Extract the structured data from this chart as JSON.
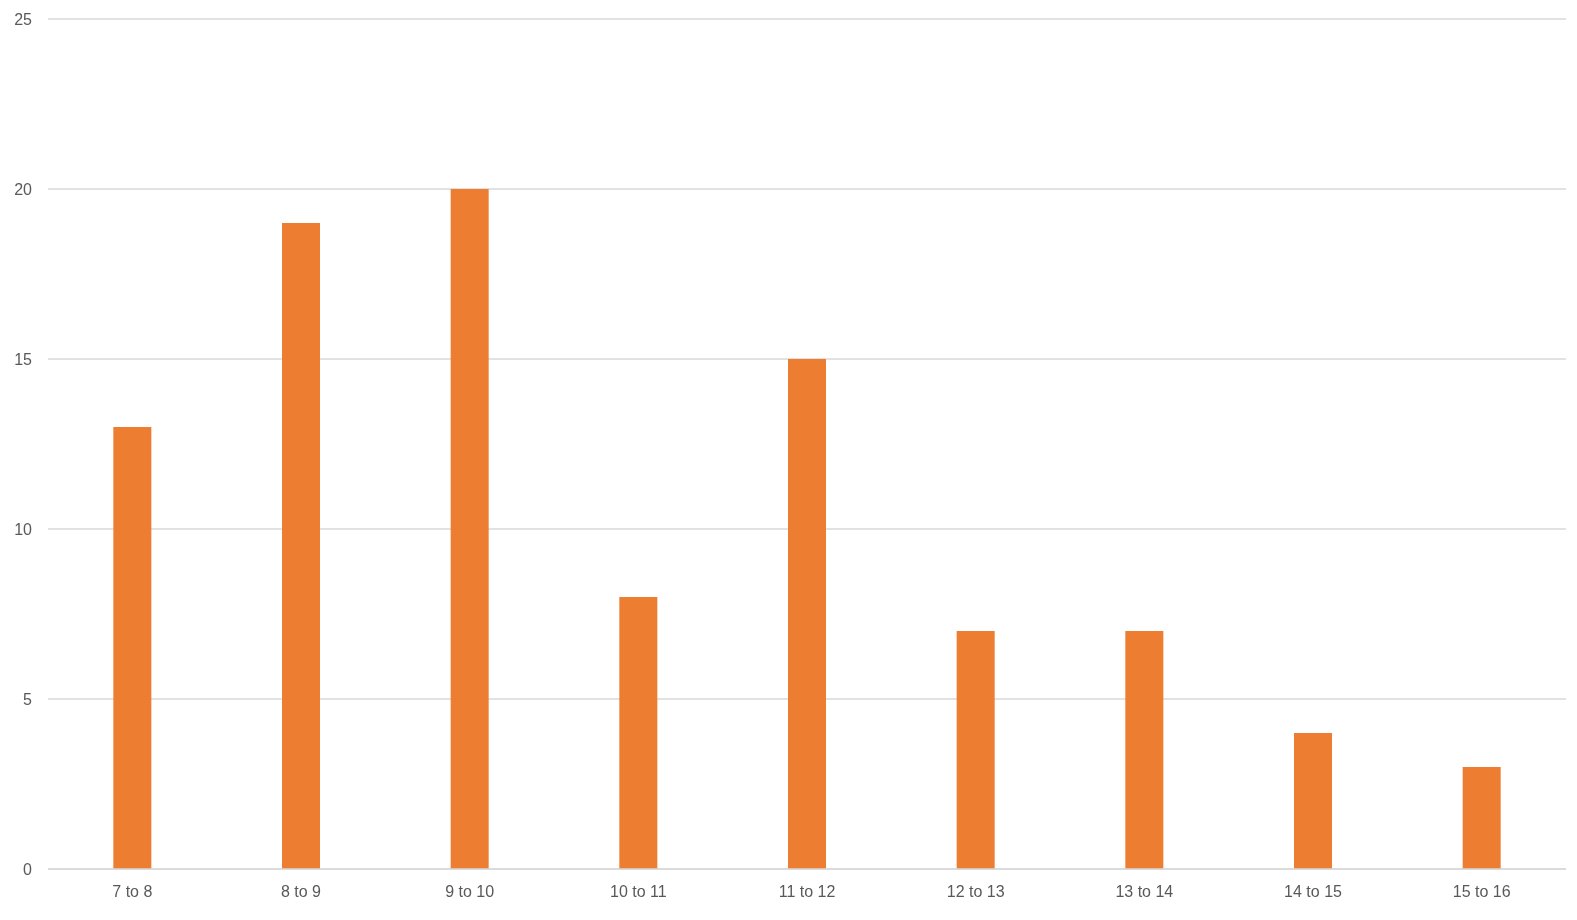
{
  "chart_data": {
    "type": "bar",
    "categories": [
      "7 to 8",
      "8 to 9",
      "9 to 10",
      "10 to 11",
      "11 to 12",
      "12 to 13",
      "13 to 14",
      "14 to 15",
      "15 to 16"
    ],
    "values": [
      13,
      19,
      20,
      8,
      15,
      7,
      7,
      4,
      3
    ],
    "color": "#ed7d31",
    "ylim": [
      0,
      25
    ],
    "yticks": [
      0,
      5,
      10,
      15,
      20,
      25
    ],
    "grid": "y"
  }
}
